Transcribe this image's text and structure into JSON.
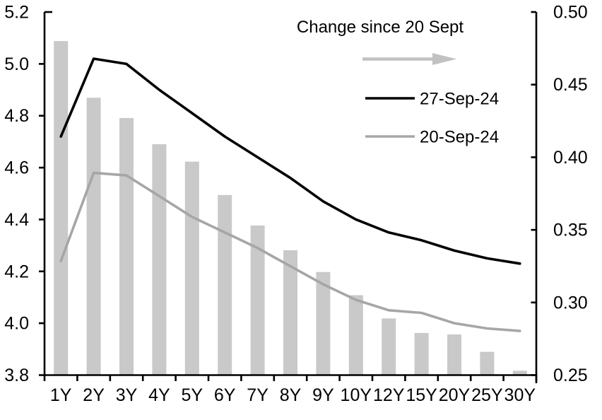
{
  "chart_data": {
    "type": "bar+line combo",
    "title": "",
    "categories": [
      "1Y",
      "2Y",
      "3Y",
      "4Y",
      "5Y",
      "6Y",
      "7Y",
      "8Y",
      "9Y",
      "10Y",
      "12Y",
      "15Y",
      "20Y",
      "25Y",
      "30Y"
    ],
    "series": [
      {
        "name": "Change since 20 Sept",
        "type": "bar",
        "axis": "right",
        "color": "#c9c9c9",
        "values": [
          0.48,
          0.441,
          0.427,
          0.409,
          0.397,
          0.374,
          0.353,
          0.336,
          0.321,
          0.305,
          0.289,
          0.279,
          0.278,
          0.266,
          0.253
        ]
      },
      {
        "name": "27-Sep-24",
        "type": "line",
        "axis": "left",
        "color": "#000000",
        "values": [
          4.72,
          5.02,
          5.0,
          4.9,
          4.81,
          4.72,
          4.64,
          4.56,
          4.47,
          4.4,
          4.35,
          4.32,
          4.28,
          4.25,
          4.23
        ]
      },
      {
        "name": "20-Sep-24",
        "type": "line",
        "axis": "left",
        "color": "#a6a6a6",
        "values": [
          4.24,
          4.58,
          4.57,
          4.49,
          4.41,
          4.35,
          4.29,
          4.22,
          4.15,
          4.09,
          4.05,
          4.04,
          4.0,
          3.98,
          3.97
        ]
      }
    ],
    "left_axis": {
      "min": 3.8,
      "max": 5.2,
      "tick_labels": [
        "5.2",
        "5.0",
        "4.8",
        "4.6",
        "4.4",
        "4.2",
        "4.0",
        "3.8"
      ],
      "tick_values": [
        5.2,
        5.0,
        4.8,
        4.6,
        4.4,
        4.2,
        4.0,
        3.8
      ]
    },
    "right_axis": {
      "min": 0.25,
      "max": 0.5,
      "tick_labels": [
        "0.50",
        "0.45",
        "0.40",
        "0.35",
        "0.30",
        "0.25"
      ],
      "tick_values": [
        0.5,
        0.45,
        0.4,
        0.35,
        0.3,
        0.25
      ]
    },
    "legend": {
      "position": "top-right-inside",
      "title": "Change since 20 Sept",
      "arrow_color": "#c1c1c1",
      "entries": [
        {
          "label": "27-Sep-24",
          "color": "#000000"
        },
        {
          "label": "20-Sep-24",
          "color": "#a6a6a6"
        }
      ]
    },
    "grid": "off",
    "background": "#ffffff"
  }
}
